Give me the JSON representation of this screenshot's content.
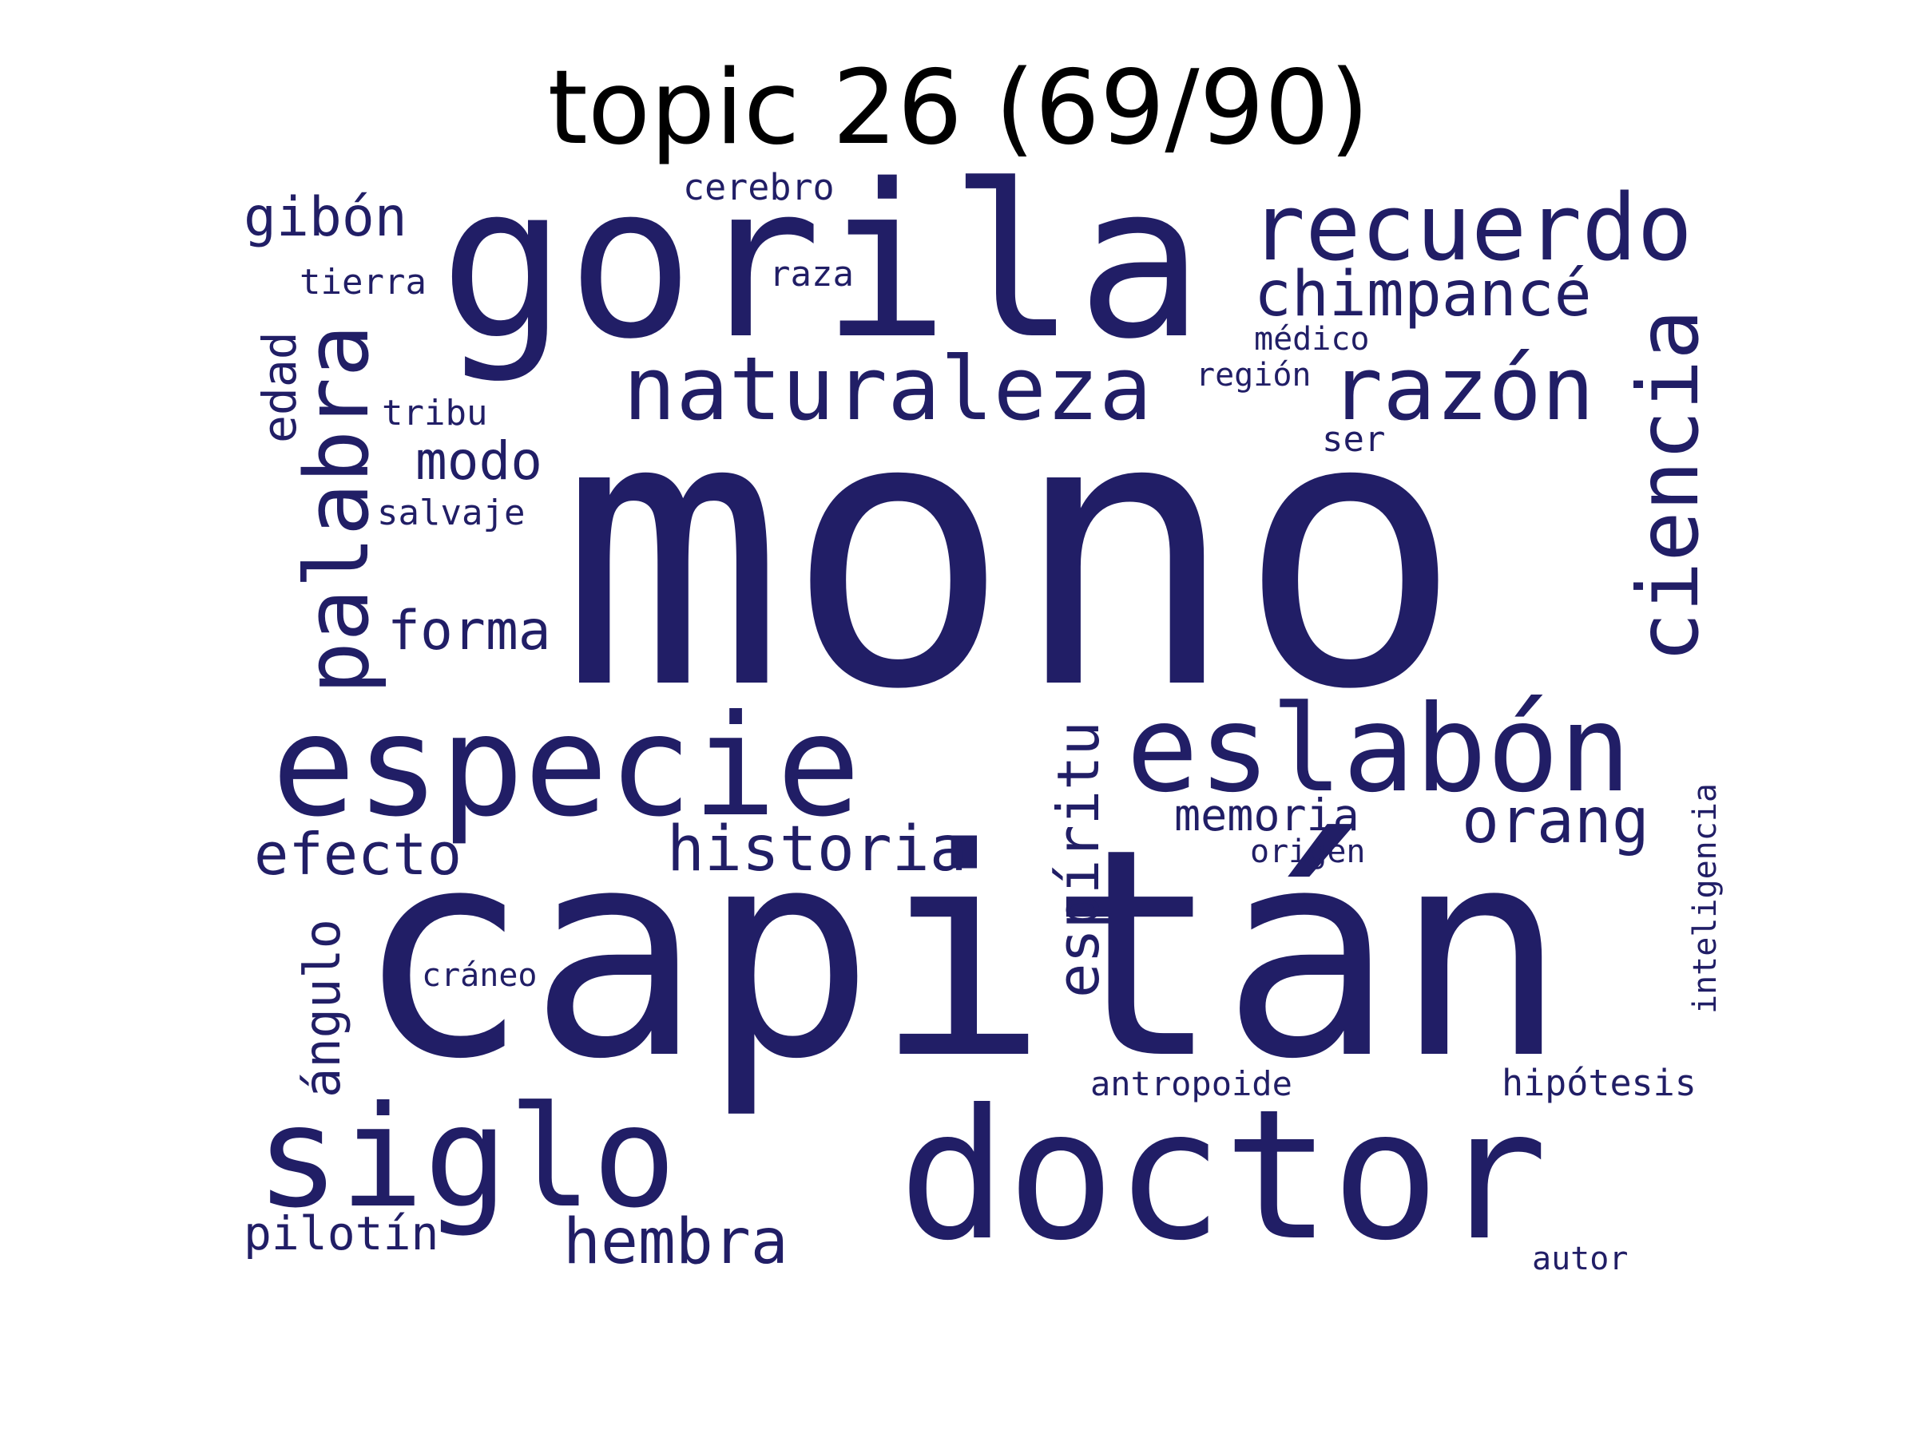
{
  "title": "topic 26 (69/90)",
  "word_color": "#211e66",
  "words": [
    {
      "text": "mono",
      "key": "mono",
      "rotated": false
    },
    {
      "text": "capitán",
      "key": "capitan",
      "rotated": false
    },
    {
      "text": "gorila",
      "key": "gorila",
      "rotated": false
    },
    {
      "text": "doctor",
      "key": "doctor",
      "rotated": false
    },
    {
      "text": "especie",
      "key": "especie",
      "rotated": false
    },
    {
      "text": "siglo",
      "key": "siglo",
      "rotated": false
    },
    {
      "text": "eslabón",
      "key": "eslabon",
      "rotated": false
    },
    {
      "text": "recuerdo",
      "key": "recuerdo",
      "rotated": false
    },
    {
      "text": "naturaleza",
      "key": "naturaleza",
      "rotated": false
    },
    {
      "text": "razón",
      "key": "razon",
      "rotated": false
    },
    {
      "text": "palabra",
      "key": "palabra",
      "rotated": true
    },
    {
      "text": "ciencia",
      "key": "ciencia",
      "rotated": true
    },
    {
      "text": "chimpancé",
      "key": "chimpance",
      "rotated": false
    },
    {
      "text": "espíritu",
      "key": "espiritu",
      "rotated": true
    },
    {
      "text": "historia",
      "key": "historia",
      "rotated": false
    },
    {
      "text": "hembra",
      "key": "hembra",
      "rotated": false
    },
    {
      "text": "orang",
      "key": "orang",
      "rotated": false
    },
    {
      "text": "efecto",
      "key": "efecto",
      "rotated": false
    },
    {
      "text": "gibón",
      "key": "gibon",
      "rotated": false
    },
    {
      "text": "forma",
      "key": "forma",
      "rotated": false
    },
    {
      "text": "modo",
      "key": "modo",
      "rotated": false
    },
    {
      "text": "ángulo",
      "key": "angulo",
      "rotated": true
    },
    {
      "text": "memoria",
      "key": "memoria",
      "rotated": false
    },
    {
      "text": "pilotín",
      "key": "pilotin",
      "rotated": false
    },
    {
      "text": "edad",
      "key": "edad",
      "rotated": true
    },
    {
      "text": "cerebro",
      "key": "cerebro",
      "rotated": false
    },
    {
      "text": "hipótesis",
      "key": "hipotesis",
      "rotated": false
    },
    {
      "text": "antropoide",
      "key": "antropoide",
      "rotated": false
    },
    {
      "text": "inteligencia",
      "key": "inteligencia",
      "rotated": true
    },
    {
      "text": "tierra",
      "key": "tierra",
      "rotated": false
    },
    {
      "text": "raza",
      "key": "raza",
      "rotated": false
    },
    {
      "text": "médico",
      "key": "medico",
      "rotated": false
    },
    {
      "text": "región",
      "key": "region",
      "rotated": false
    },
    {
      "text": "tribu",
      "key": "tribu",
      "rotated": false
    },
    {
      "text": "salvaje",
      "key": "salvaje",
      "rotated": false
    },
    {
      "text": "ser",
      "key": "ser",
      "rotated": false
    },
    {
      "text": "origen",
      "key": "origen",
      "rotated": false
    },
    {
      "text": "cráneo",
      "key": "craneo",
      "rotated": false
    },
    {
      "text": "autor",
      "key": "autor",
      "rotated": false
    }
  ]
}
